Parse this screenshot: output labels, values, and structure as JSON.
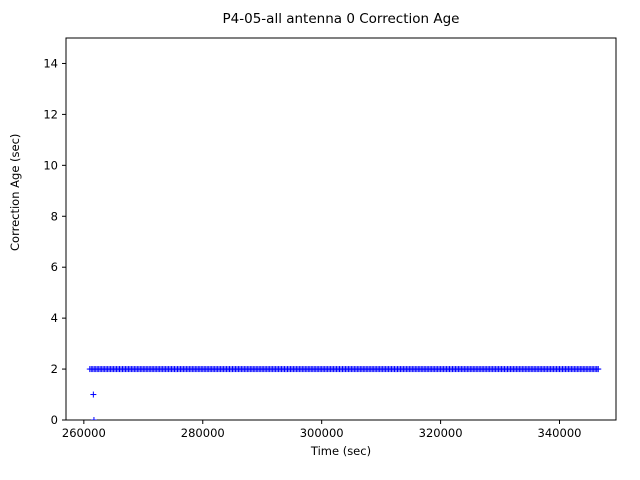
{
  "chart_data": {
    "type": "scatter",
    "title": "P4-05-all antenna 0 Correction Age",
    "xlabel": "Time (sec)",
    "ylabel": "Correction Age (sec)",
    "xlim": [
      257000,
      349500
    ],
    "ylim": [
      0,
      15
    ],
    "xticks": [
      260000,
      280000,
      300000,
      320000,
      340000
    ],
    "yticks": [
      0,
      2,
      4,
      6,
      8,
      10,
      12,
      14
    ],
    "grid": false,
    "legend": null,
    "marker": "+",
    "marker_color": "#0000ff",
    "series": [
      {
        "name": "Correction Age",
        "representation": "dense-band",
        "band": {
          "y": 2,
          "x_start": 261000,
          "x_end": 346500,
          "sample_step": 250
        },
        "points": [
          {
            "x": 261600,
            "y": 1
          },
          {
            "x": 261700,
            "y": 0
          }
        ]
      }
    ]
  }
}
